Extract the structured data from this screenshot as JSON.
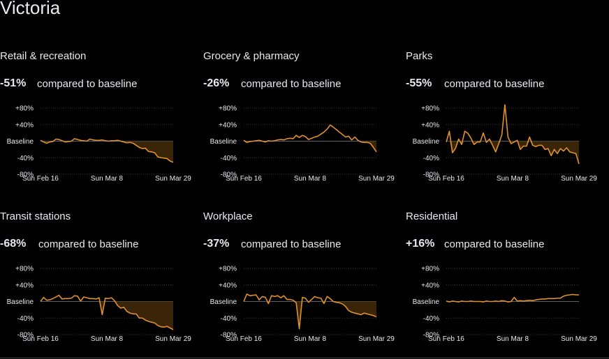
{
  "region": "Victoria",
  "colors": {
    "background": "#000000",
    "text": "#e8eaed",
    "line": "#e0912b",
    "fill_below_baseline": "#3a2508",
    "grid": "#3c3c3c"
  },
  "panels": [
    {
      "title": "Retail & recreation",
      "value": "-51%",
      "description": "compared to baseline"
    },
    {
      "title": "Grocery & pharmacy",
      "value": "-26%",
      "description": "compared to baseline"
    },
    {
      "title": "Parks",
      "value": "-55%",
      "description": "compared to baseline"
    },
    {
      "title": "Transit stations",
      "value": "-68%",
      "description": "compared to baseline"
    },
    {
      "title": "Workplace",
      "value": "-37%",
      "description": "compared to baseline"
    },
    {
      "title": "Residential",
      "value": "+16%",
      "description": "compared to baseline"
    }
  ],
  "chart_data": [
    {
      "type": "line",
      "title": "Retail & recreation",
      "x_tick_labels": [
        "Sun Feb 16",
        "Sun Mar 8",
        "Sun Mar 29"
      ],
      "y_tick_labels": [
        "+80%",
        "+40%",
        "Baseline",
        "-40%",
        "-80%"
      ],
      "y_ticks": [
        80,
        40,
        0,
        -40,
        -80
      ],
      "ylim": [
        -80,
        80
      ],
      "x_range_days": [
        0,
        43
      ],
      "grid": true,
      "values": [
        2,
        -2,
        -5,
        -2,
        -1,
        5,
        4,
        1,
        -2,
        -1,
        0,
        6,
        4,
        2,
        1,
        0,
        5,
        3,
        2,
        2,
        3,
        1,
        0,
        1,
        1,
        2,
        0,
        -2,
        -4,
        -3,
        -5,
        -10,
        -15,
        -18,
        -17,
        -25,
        -26,
        -28,
        -38,
        -40,
        -41,
        -42,
        -48,
        -51
      ]
    },
    {
      "type": "line",
      "title": "Grocery & pharmacy",
      "x_tick_labels": [
        "Sun Feb 16",
        "Sun Mar 8",
        "Sun Mar 29"
      ],
      "y_tick_labels": [
        "+80%",
        "+40%",
        "Baseline",
        "-40%",
        "-80%"
      ],
      "y_ticks": [
        80,
        40,
        0,
        -40,
        -80
      ],
      "ylim": [
        -80,
        80
      ],
      "x_range_days": [
        0,
        43
      ],
      "grid": true,
      "values": [
        2,
        -3,
        -1,
        0,
        1,
        2,
        0,
        -2,
        1,
        0,
        1,
        3,
        4,
        3,
        6,
        7,
        6,
        14,
        9,
        14,
        11,
        4,
        7,
        10,
        12,
        17,
        22,
        29,
        39,
        34,
        28,
        22,
        16,
        10,
        12,
        3,
        10,
        2,
        -2,
        -3,
        -3,
        -5,
        -15,
        -26
      ]
    },
    {
      "type": "line",
      "title": "Parks",
      "x_tick_labels": [
        "Sun Feb 16",
        "Sun Mar 8",
        "Sun Mar 29"
      ],
      "y_tick_labels": [
        "+80%",
        "+40%",
        "Baseline",
        "-40%",
        "-80%"
      ],
      "y_ticks": [
        80,
        40,
        0,
        -40,
        -80
      ],
      "ylim": [
        -80,
        80
      ],
      "x_range_days": [
        0,
        43
      ],
      "grid": true,
      "values": [
        -2,
        24,
        -28,
        -17,
        5,
        -8,
        24,
        19,
        7,
        -8,
        -2,
        -2,
        20,
        -3,
        5,
        -10,
        -26,
        -6,
        15,
        88,
        10,
        -6,
        -2,
        2,
        -20,
        -12,
        -12,
        10,
        -10,
        -13,
        -10,
        -10,
        -20,
        -18,
        -35,
        -20,
        -30,
        -18,
        -24,
        -16,
        -26,
        -28,
        -30,
        -55
      ]
    },
    {
      "type": "line",
      "title": "Transit stations",
      "x_tick_labels": [
        "Sun Feb 16",
        "Sun Mar 8",
        "Sun Mar 29"
      ],
      "y_tick_labels": [
        "+80%",
        "+40%",
        "Baseline",
        "-40%",
        "-80%"
      ],
      "y_ticks": [
        80,
        40,
        0,
        -40,
        -80
      ],
      "ylim": [
        -80,
        80
      ],
      "x_range_days": [
        0,
        43
      ],
      "grid": true,
      "values": [
        0,
        10,
        3,
        4,
        7,
        11,
        15,
        6,
        7,
        7,
        8,
        14,
        13,
        1,
        11,
        9,
        7,
        7,
        6,
        9,
        -32,
        8,
        7,
        9,
        2,
        -10,
        -16,
        -14,
        -24,
        -28,
        -30,
        -30,
        -40,
        -40,
        -45,
        -48,
        -50,
        -52,
        -58,
        -61,
        -62,
        -60,
        -64,
        -68
      ]
    },
    {
      "type": "line",
      "title": "Workplace",
      "x_tick_labels": [
        "Sun Feb 16",
        "Sun Mar 8",
        "Sun Mar 29"
      ],
      "y_tick_labels": [
        "+80%",
        "+40%",
        "Baseline",
        "-40%",
        "-80%"
      ],
      "y_ticks": [
        80,
        40,
        0,
        -40,
        -80
      ],
      "ylim": [
        -80,
        80
      ],
      "x_range_days": [
        0,
        43
      ],
      "grid": true,
      "values": [
        0,
        18,
        14,
        15,
        16,
        4,
        12,
        10,
        -5,
        14,
        12,
        14,
        9,
        14,
        5,
        5,
        3,
        -3,
        -66,
        10,
        8,
        -2,
        5,
        12,
        9,
        8,
        -5,
        12,
        7,
        0,
        -2,
        -3,
        -6,
        -12,
        -22,
        -26,
        -28,
        -30,
        -32,
        -28,
        -30,
        -32,
        -34,
        -37
      ]
    },
    {
      "type": "line",
      "title": "Residential",
      "x_tick_labels": [
        "Sun Feb 16",
        "Sun Mar 8",
        "Sun Mar 29"
      ],
      "y_tick_labels": [
        "+80%",
        "+40%",
        "Baseline",
        "-40%",
        "-80%"
      ],
      "y_ticks": [
        80,
        40,
        0,
        -40,
        -80
      ],
      "ylim": [
        -80,
        80
      ],
      "x_range_days": [
        0,
        43
      ],
      "grid": true,
      "values": [
        1,
        -1,
        1,
        0,
        -1,
        1,
        0,
        0,
        1,
        0,
        0,
        0,
        -1,
        1,
        0,
        0,
        1,
        0,
        2,
        1,
        -1,
        0,
        10,
        1,
        2,
        1,
        2,
        3,
        2,
        4,
        5,
        6,
        6,
        7,
        7,
        7,
        8,
        8,
        13,
        15,
        16,
        17,
        16,
        16
      ]
    }
  ]
}
